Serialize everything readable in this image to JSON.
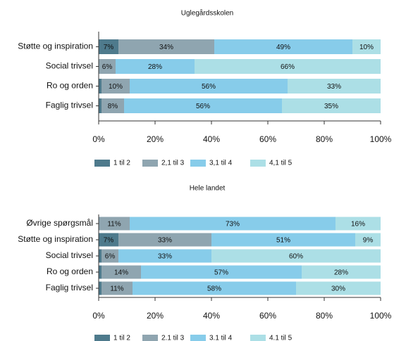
{
  "chart_data": [
    {
      "type": "bar",
      "orientation": "horizontal",
      "stacked": true,
      "title": "Uglegårdsskolen",
      "categories": [
        "Støtte og inspiration",
        "Social trivsel",
        "Ro og orden",
        "Faglig trivsel"
      ],
      "series": [
        {
          "name": "1 til 2",
          "color": "#4e7a8c",
          "values": [
            7,
            0,
            1,
            1
          ],
          "value_labels": [
            "7%",
            null,
            null,
            null
          ]
        },
        {
          "name": "2,1 til 3",
          "color": "#8fa5b0",
          "values": [
            34,
            6,
            10,
            8
          ],
          "value_labels": [
            "34%",
            "6%",
            "10%",
            "8%"
          ]
        },
        {
          "name": "3,1 til 4",
          "color": "#87ccea",
          "values": [
            49,
            28,
            56,
            56
          ],
          "value_labels": [
            "49%",
            "28%",
            "56%",
            "56%"
          ]
        },
        {
          "name": "4,1 til 5",
          "color": "#acdfe6",
          "values": [
            10,
            66,
            33,
            35
          ],
          "value_labels": [
            "10%",
            "66%",
            "33%",
            "35%"
          ]
        }
      ],
      "xlim": [
        0,
        100
      ],
      "xticks": [
        {
          "value": 0,
          "label": "0%"
        },
        {
          "value": 20,
          "label": "20%"
        },
        {
          "value": 40,
          "label": "40%"
        },
        {
          "value": 60,
          "label": "60%"
        },
        {
          "value": 80,
          "label": "80%"
        },
        {
          "value": 100,
          "label": "100%"
        }
      ],
      "legend": "bottom"
    },
    {
      "type": "bar",
      "orientation": "horizontal",
      "stacked": true,
      "title": "Hele landet",
      "categories": [
        "Øvrige spørgsmål",
        "Støtte og inspiration",
        "Social trivsel",
        "Ro og orden",
        "Faglig trivsel"
      ],
      "series": [
        {
          "name": "1 til 2",
          "color": "#4e7a8c",
          "values": [
            0,
            7,
            1,
            1,
            1
          ],
          "value_labels": [
            null,
            "7%",
            null,
            null,
            null
          ]
        },
        {
          "name": "2.1 til 3",
          "color": "#8fa5b0",
          "values": [
            11,
            33,
            6,
            14,
            11
          ],
          "value_labels": [
            "11%",
            "33%",
            "6%",
            "14%",
            "11%"
          ]
        },
        {
          "name": "3.1 til 4",
          "color": "#87ccea",
          "values": [
            73,
            51,
            33,
            57,
            58
          ],
          "value_labels": [
            "73%",
            "51%",
            "33%",
            "57%",
            "58%"
          ]
        },
        {
          "name": "4.1 til 5",
          "color": "#acdfe6",
          "values": [
            16,
            9,
            60,
            28,
            30
          ],
          "value_labels": [
            "16%",
            "9%",
            "60%",
            "28%",
            "30%"
          ]
        }
      ],
      "xlim": [
        0,
        100
      ],
      "xticks": [
        {
          "value": 0,
          "label": "0%"
        },
        {
          "value": 20,
          "label": "20%"
        },
        {
          "value": 40,
          "label": "40%"
        },
        {
          "value": 60,
          "label": "60%"
        },
        {
          "value": 80,
          "label": "80%"
        },
        {
          "value": 100,
          "label": "100%"
        }
      ],
      "legend": "bottom"
    }
  ]
}
